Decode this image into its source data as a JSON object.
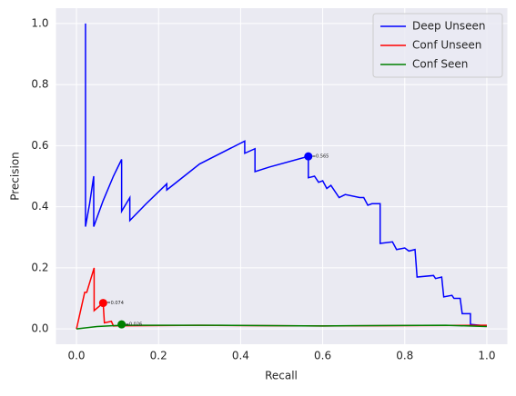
{
  "chart_data": {
    "type": "line",
    "xlabel": "Recall",
    "ylabel": "Precision",
    "xlim": [
      -0.05,
      1.05
    ],
    "ylim": [
      -0.05,
      1.05
    ],
    "xticks": [
      {
        "value": 0,
        "label": "0.0"
      },
      {
        "value": 0.2,
        "label": "0.2"
      },
      {
        "value": 0.4,
        "label": "0.4"
      },
      {
        "value": 0.6,
        "label": "0.6"
      },
      {
        "value": 0.8,
        "label": "0.8"
      },
      {
        "value": 1,
        "label": "1.0"
      }
    ],
    "yticks": [
      {
        "value": 0,
        "label": "0.0"
      },
      {
        "value": 0.2,
        "label": "0.2"
      },
      {
        "value": 0.4,
        "label": "0.4"
      },
      {
        "value": 0.6,
        "label": "0.6"
      },
      {
        "value": 0.8,
        "label": "0.8"
      },
      {
        "value": 1,
        "label": "1.0"
      }
    ],
    "grid": true,
    "legend": "upper right",
    "series": [
      {
        "name": "Deep Unseen",
        "color": "#0000ff",
        "x": [
          0.022,
          0.022,
          0.032,
          0.042,
          0.042,
          0.065,
          0.09,
          0.11,
          0.11,
          0.13,
          0.13,
          0.17,
          0.22,
          0.22,
          0.3,
          0.41,
          0.41,
          0.435,
          0.435,
          0.47,
          0.565,
          0.565,
          0.58,
          0.59,
          0.6,
          0.61,
          0.62,
          0.64,
          0.655,
          0.69,
          0.7,
          0.71,
          0.72,
          0.74,
          0.74,
          0.77,
          0.78,
          0.8,
          0.81,
          0.825,
          0.83,
          0.87,
          0.875,
          0.89,
          0.895,
          0.915,
          0.92,
          0.935,
          0.94,
          0.96,
          0.96,
          1.0
        ],
        "values": [
          1.0,
          0.335,
          0.41,
          0.5,
          0.335,
          0.42,
          0.5,
          0.555,
          0.385,
          0.43,
          0.355,
          0.41,
          0.475,
          0.455,
          0.54,
          0.615,
          0.575,
          0.59,
          0.515,
          0.53,
          0.565,
          0.495,
          0.5,
          0.48,
          0.485,
          0.46,
          0.47,
          0.43,
          0.44,
          0.43,
          0.43,
          0.405,
          0.41,
          0.41,
          0.28,
          0.285,
          0.26,
          0.265,
          0.255,
          0.26,
          0.17,
          0.175,
          0.165,
          0.17,
          0.105,
          0.11,
          0.1,
          0.1,
          0.05,
          0.05,
          0.015,
          0.01
        ]
      },
      {
        "name": "Conf Unseen",
        "color": "#ff0000",
        "x": [
          0,
          0.02,
          0.025,
          0.043,
          0.043,
          0.065,
          0.068,
          0.085,
          0.09,
          0.3,
          0.6,
          1.0
        ],
        "values": [
          0,
          0.12,
          0.12,
          0.2,
          0.06,
          0.085,
          0.02,
          0.025,
          0.01,
          0.012,
          0.01,
          0.012
        ]
      },
      {
        "name": "Conf Seen",
        "color": "#008000",
        "x": [
          0,
          0.05,
          0.11,
          0.35,
          0.6,
          0.9,
          1.0
        ],
        "values": [
          0,
          0.008,
          0.012,
          0.012,
          0.01,
          0.012,
          0.008
        ]
      }
    ],
    "points": [
      {
        "x": 0.565,
        "y": 0.565,
        "color": "#0000ff",
        "label": "F1=0.565"
      },
      {
        "x": 0.065,
        "y": 0.085,
        "color": "#ff0000",
        "label": "F1=0.074"
      },
      {
        "x": 0.11,
        "y": 0.015,
        "color": "#008000",
        "label": "F1=0.026"
      }
    ]
  }
}
